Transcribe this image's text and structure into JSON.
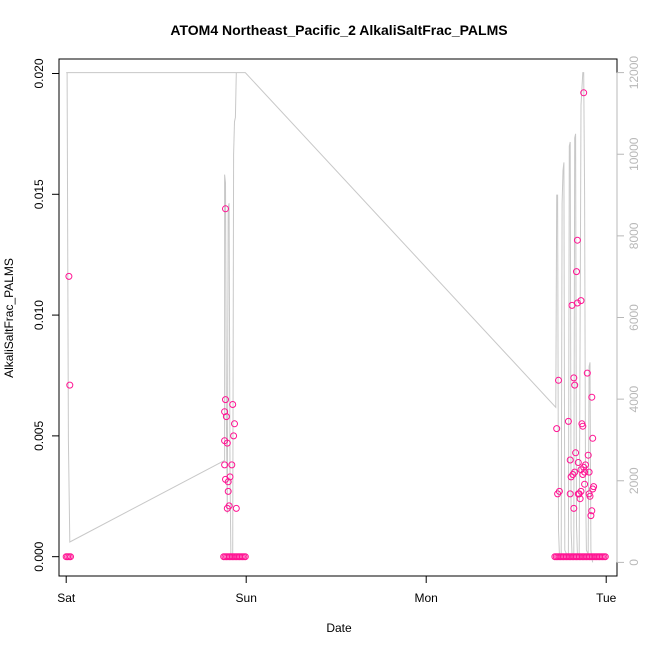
{
  "chart_data": {
    "type": "scatter",
    "title": "ATOM4 Northeast_Pacific_2 AlkaliSaltFrac_PALMS",
    "xlabel": "Date",
    "ylabel": "AlkaliSaltFrac_PALMS",
    "x_ticks": [
      {
        "label": "Sat",
        "day": 0
      },
      {
        "label": "Sun",
        "day": 1
      },
      {
        "label": "Mon",
        "day": 2
      },
      {
        "label": "Tue",
        "day": 3
      }
    ],
    "xlim_days": [
      -0.04,
      3.06
    ],
    "ylim": [
      -0.0008,
      0.0206
    ],
    "y_ticks": [
      "0.000",
      "0.005",
      "0.010",
      "0.015",
      "0.020"
    ],
    "y_tick_values": [
      0,
      0.005,
      0.01,
      0.015,
      0.02
    ],
    "y2_ticks": [
      "0",
      "2000",
      "4000",
      "6000",
      "8000",
      "10000",
      "12000"
    ],
    "y2_tick_values": [
      0,
      2000,
      4000,
      6000,
      8000,
      10000,
      12000
    ],
    "y2lim": [
      -333.3,
      12333.3
    ],
    "grid": false,
    "colors": {
      "points": "#ff1493",
      "altitude_line": "#c8c8c8",
      "right_axis": "#b8b8b8"
    },
    "series": [
      {
        "marker": "open-circle",
        "points": [
          [
            0.015,
            0.0116
          ],
          [
            0.02,
            0.0071
          ],
          [
            0.885,
            0.0144
          ],
          [
            0.885,
            0.0065
          ],
          [
            0.88,
            0.006
          ],
          [
            0.89,
            0.0058
          ],
          [
            0.88,
            0.0048
          ],
          [
            0.895,
            0.0047
          ],
          [
            0.88,
            0.0038
          ],
          [
            0.885,
            0.0032
          ],
          [
            0.9,
            0.0031
          ],
          [
            0.9,
            0.0027
          ],
          [
            0.91,
            0.0033
          ],
          [
            0.92,
            0.0038
          ],
          [
            0.925,
            0.0063
          ],
          [
            0.93,
            0.005
          ],
          [
            0.935,
            0.0055
          ],
          [
            0.905,
            0.0021
          ],
          [
            0.895,
            0.002
          ],
          [
            0.945,
            0.002
          ],
          [
            2.725,
            0.0053
          ],
          [
            2.735,
            0.0073
          ],
          [
            2.73,
            0.0026
          ],
          [
            2.74,
            0.0027
          ],
          [
            2.79,
            0.0056
          ],
          [
            2.8,
            0.004
          ],
          [
            2.805,
            0.0033
          ],
          [
            2.815,
            0.0034
          ],
          [
            2.81,
            0.0104
          ],
          [
            2.82,
            0.0074
          ],
          [
            2.825,
            0.0071
          ],
          [
            2.83,
            0.0043
          ],
          [
            2.825,
            0.0035
          ],
          [
            2.835,
            0.0118
          ],
          [
            2.84,
            0.0105
          ],
          [
            2.84,
            0.0131
          ],
          [
            2.845,
            0.0039
          ],
          [
            2.845,
            0.0026
          ],
          [
            2.85,
            0.0026
          ],
          [
            2.855,
            0.0024
          ],
          [
            2.86,
            0.0106
          ],
          [
            2.865,
            0.0055
          ],
          [
            2.87,
            0.0054
          ],
          [
            2.86,
            0.0036
          ],
          [
            2.875,
            0.0037
          ],
          [
            2.88,
            0.003
          ],
          [
            2.885,
            0.0038
          ],
          [
            2.87,
            0.0034
          ],
          [
            2.875,
            0.0192
          ],
          [
            2.895,
            0.0076
          ],
          [
            2.9,
            0.0042
          ],
          [
            2.905,
            0.0035
          ],
          [
            2.905,
            0.0026
          ],
          [
            2.91,
            0.0025
          ],
          [
            2.92,
            0.0066
          ],
          [
            2.925,
            0.0049
          ],
          [
            2.93,
            0.0029
          ],
          [
            2.925,
            0.0028
          ],
          [
            2.92,
            0.0019
          ],
          [
            2.915,
            0.0017
          ],
          [
            2.8,
            0.0026
          ],
          [
            2.86,
            0.0027
          ],
          [
            2.82,
            0.002
          ],
          [
            2.88,
            0.0035
          ]
        ]
      }
    ],
    "zero_point_segments_days": [
      [
        0.0,
        0.03
      ],
      [
        0.875,
        1.0
      ],
      [
        2.715,
        3.0
      ]
    ],
    "altitude_series": {
      "axis": "right",
      "points": [
        [
          0.0,
          12000
        ],
        [
          0.005,
          12000
        ],
        [
          0.012,
          3000
        ],
        [
          0.02,
          500
        ],
        [
          0.88,
          2500
        ],
        [
          0.88,
          9500
        ],
        [
          0.885,
          9300
        ],
        [
          0.89,
          3500
        ],
        [
          0.895,
          1200
        ],
        [
          0.9,
          8700
        ],
        [
          0.905,
          8800
        ],
        [
          0.91,
          2200
        ],
        [
          0.915,
          100
        ],
        [
          0.92,
          100
        ],
        [
          0.925,
          100
        ],
        [
          0.93,
          10000
        ],
        [
          0.935,
          10800
        ],
        [
          0.94,
          10900
        ],
        [
          0.945,
          12000
        ],
        [
          0.995,
          12000
        ],
        [
          0.005,
          12000
        ],
        [
          0.995,
          12000
        ],
        [
          2.72,
          3800
        ],
        [
          2.725,
          9000
        ],
        [
          2.73,
          9000
        ],
        [
          2.735,
          800
        ],
        [
          2.74,
          200
        ],
        [
          2.75,
          200
        ],
        [
          2.755,
          8800
        ],
        [
          2.76,
          9600
        ],
        [
          2.765,
          9800
        ],
        [
          2.77,
          300
        ],
        [
          2.78,
          200
        ],
        [
          2.79,
          200
        ],
        [
          2.795,
          10200
        ],
        [
          2.8,
          10300
        ],
        [
          2.805,
          800
        ],
        [
          2.81,
          200
        ],
        [
          2.82,
          200
        ],
        [
          2.825,
          10400
        ],
        [
          2.83,
          10500
        ],
        [
          2.835,
          900
        ],
        [
          2.84,
          200
        ],
        [
          2.85,
          200
        ],
        [
          2.86,
          11200
        ],
        [
          2.87,
          12000
        ],
        [
          2.875,
          12000
        ],
        [
          2.88,
          9000
        ],
        [
          2.885,
          2000
        ],
        [
          2.89,
          300
        ],
        [
          2.9,
          200
        ],
        [
          2.905,
          4800
        ],
        [
          2.91,
          4900
        ],
        [
          2.915,
          300
        ],
        [
          2.92,
          100
        ],
        [
          2.925,
          0
        ]
      ]
    }
  }
}
